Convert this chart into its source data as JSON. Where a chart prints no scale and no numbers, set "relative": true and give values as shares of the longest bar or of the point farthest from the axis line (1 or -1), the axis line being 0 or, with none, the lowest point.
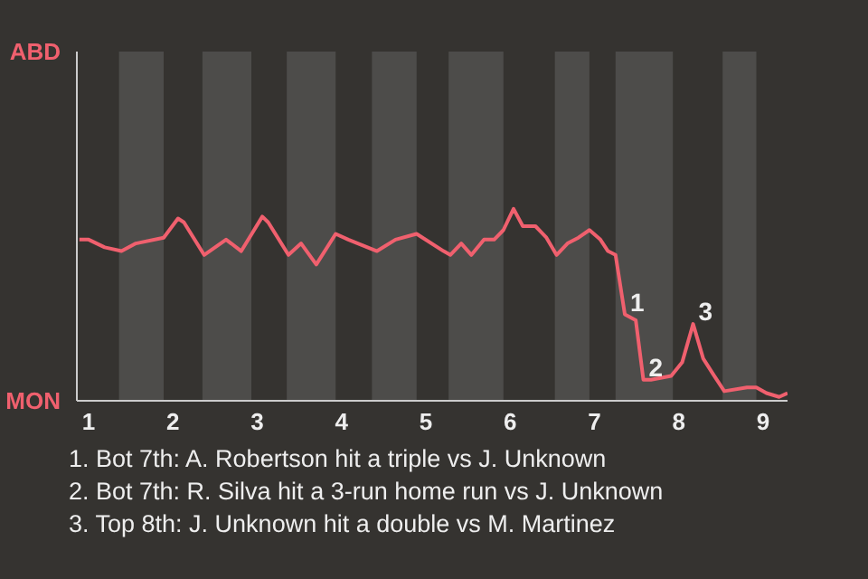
{
  "chart_data": {
    "type": "line",
    "relative": true,
    "x": [
      0.89,
      1.0,
      1.19,
      1.39,
      1.56,
      1.89,
      2.06,
      2.13,
      2.37,
      2.63,
      2.81,
      3.06,
      3.13,
      3.37,
      3.52,
      3.7,
      3.93,
      4.08,
      4.42,
      4.64,
      4.89,
      5.21,
      5.29,
      5.42,
      5.54,
      5.69,
      5.81,
      5.92,
      6.04,
      6.15,
      6.3,
      6.43,
      6.55,
      6.68,
      6.81,
      6.94,
      7.07,
      7.16,
      7.25,
      7.36,
      7.49,
      7.58,
      7.67,
      7.91,
      8.04,
      8.17,
      8.29,
      8.42,
      8.54,
      8.81,
      8.92,
      9.04,
      9.19,
      9.29
    ],
    "series": [
      {
        "color": "#f0606e",
        "values": [
          0.84,
          0.84,
          0.8,
          0.78,
          0.82,
          0.85,
          0.95,
          0.93,
          0.76,
          0.84,
          0.78,
          0.96,
          0.93,
          0.76,
          0.82,
          0.71,
          0.87,
          0.84,
          0.78,
          0.84,
          0.87,
          0.78,
          0.76,
          0.82,
          0.76,
          0.84,
          0.84,
          0.89,
          1,
          0.91,
          0.91,
          0.85,
          0.76,
          0.82,
          0.85,
          0.89,
          0.84,
          0.78,
          0.76,
          0.45,
          0.42,
          0.11,
          0.11,
          0.13,
          0.2,
          0.4,
          0.22,
          0.13,
          0.05,
          0.07,
          0.07,
          0.04,
          0.02,
          0.04
        ]
      }
    ],
    "xlim": [
      0.86,
      9.29
    ],
    "xticks": [
      1,
      2,
      3,
      4,
      5,
      6,
      7,
      8,
      9
    ],
    "bands": [
      {
        "axis": "x",
        "from": 1.36,
        "to": 1.89,
        "color": "#4d4c4a"
      },
      {
        "axis": "x",
        "from": 2.35,
        "to": 2.93,
        "color": "#4d4c4a"
      },
      {
        "axis": "x",
        "from": 3.35,
        "to": 3.93,
        "color": "#4d4c4a"
      },
      {
        "axis": "x",
        "from": 4.36,
        "to": 4.89,
        "color": "#4d4c4a"
      },
      {
        "axis": "x",
        "from": 5.27,
        "to": 5.92,
        "color": "#4d4c4a"
      },
      {
        "axis": "x",
        "from": 6.53,
        "to": 6.94,
        "color": "#4d4c4a"
      },
      {
        "axis": "x",
        "from": 7.25,
        "to": 7.93,
        "color": "#4d4c4a"
      },
      {
        "axis": "x",
        "from": 8.52,
        "to": 8.92,
        "color": "#4d4c4a"
      }
    ],
    "annotations": [
      "ABD",
      "MON",
      {
        "text": "1",
        "x": 7.36,
        "y": 0.45
      },
      {
        "text": "2",
        "x": 7.58,
        "y": 0.11
      },
      {
        "text": "3",
        "x": 8.17,
        "y": 0.4
      },
      "1. Bot 7th: A. Robertson hit a triple vs J. Unknown",
      "2. Bot 7th: R. Silva hit a 3-run home run vs J. Unknown",
      "3. Top 8th: J. Unknown hit a double vs M. Martinez"
    ]
  }
}
